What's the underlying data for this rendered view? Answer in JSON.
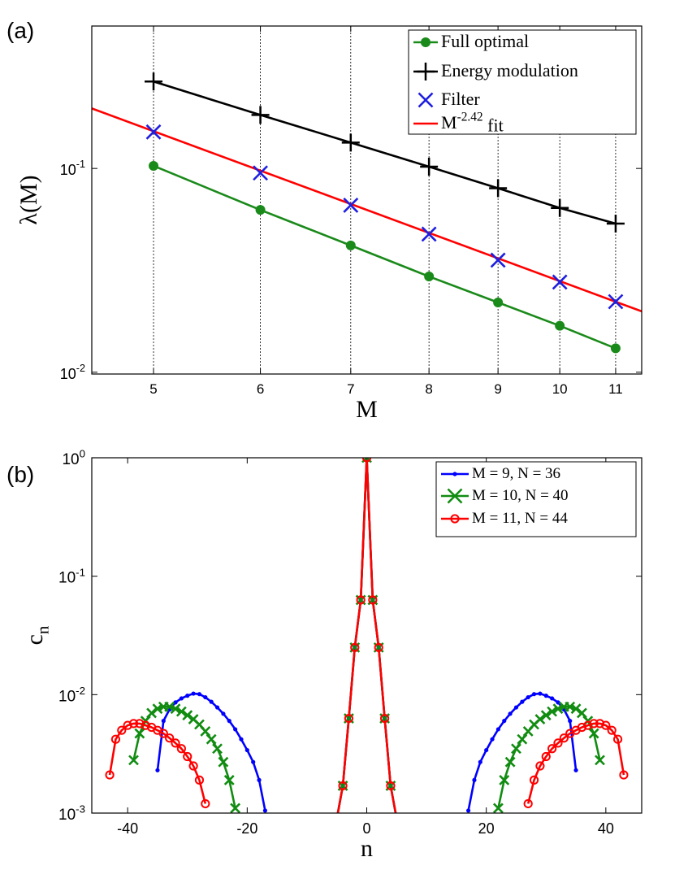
{
  "chart_data": [
    {
      "type": "line",
      "panel_label": "(a)",
      "x_label": "M",
      "y_label": "λ(M)",
      "xscale": "log",
      "yscale": "log",
      "xlim": [
        4.5,
        11.5
      ],
      "ylim": [
        0.0098,
        0.5
      ],
      "xticks": [
        5,
        6,
        7,
        8,
        9,
        10,
        11
      ],
      "yticks": [
        {
          "value": 0.01,
          "label": "10^{-2}"
        },
        {
          "value": 0.1,
          "label": "10^{-1}"
        }
      ],
      "grid": true,
      "legend": "upper right",
      "x": [
        5,
        6,
        7,
        8,
        9,
        10,
        11
      ],
      "series": [
        {
          "name": "Full optimal",
          "color": "#1a8a1a",
          "marker": "filled-circle",
          "line": true,
          "values": [
            0.103,
            0.0626,
            0.0419,
            0.0295,
            0.022,
            0.0169,
            0.0131
          ]
        },
        {
          "name": "Energy modulation",
          "color": "#000000",
          "marker": "plus",
          "line": true,
          "values": [
            0.267,
            0.183,
            0.134,
            0.102,
            0.08,
            0.064,
            0.0536
          ]
        },
        {
          "name": "Filter",
          "color": "#1f1fe0",
          "marker": "cross",
          "line": false,
          "values": [
            0.151,
            0.095,
            0.066,
            0.0476,
            0.0355,
            0.0277,
            0.0222
          ]
        },
        {
          "name": "M^{-2.42} fit",
          "color": "#ff0000",
          "marker": "none",
          "line": true,
          "x": [
            4.5,
            11.5
          ],
          "values": [
            0.197,
            0.0199
          ]
        }
      ]
    },
    {
      "type": "line",
      "panel_label": "(b)",
      "x_label": "n",
      "y_label": "c_{n}",
      "xscale": "linear",
      "yscale": "log",
      "xlim": [
        -46,
        46
      ],
      "ylim": [
        0.001,
        1
      ],
      "xticks": [
        -40,
        -20,
        0,
        20,
        40
      ],
      "yticks": [
        {
          "value": 0.001,
          "label": "10^{-3}"
        },
        {
          "value": 0.01,
          "label": "10^{-2}"
        },
        {
          "value": 0.1,
          "label": "10^{-1}"
        },
        {
          "value": 1,
          "label": "10^{0}"
        }
      ],
      "grid": false,
      "legend": "upper right",
      "series": [
        {
          "name": "M = 9, N = 36",
          "color": "#0000ff",
          "marker": "dot",
          "line": true,
          "x": [
            -35,
            -34,
            -33,
            -32,
            -31,
            -30,
            -29,
            -28,
            -27,
            -26,
            -25,
            -24,
            -23,
            -22,
            -21,
            -20,
            -19,
            -18,
            -17,
            -16,
            -5,
            -4,
            -3,
            -2,
            -1,
            0,
            1,
            2,
            3,
            4,
            5,
            16,
            17,
            18,
            19,
            20,
            21,
            22,
            23,
            24,
            25,
            26,
            27,
            28,
            29,
            30,
            31,
            32,
            33,
            34,
            35
          ],
          "values": [
            0.0023,
            0.006,
            0.0075,
            0.0086,
            0.0093,
            0.0098,
            0.0102,
            0.0101,
            0.0095,
            0.0087,
            0.0078,
            0.0069,
            0.006,
            0.0051,
            0.0042,
            0.0034,
            0.0027,
            0.0019,
            0.00105,
            null,
            0.0009,
            0.0017,
            0.0063,
            0.025,
            0.063,
            1,
            0.063,
            0.025,
            0.0063,
            0.0017,
            0.0009,
            null,
            0.00105,
            0.0019,
            0.0027,
            0.0034,
            0.0042,
            0.0051,
            0.006,
            0.0069,
            0.0078,
            0.0087,
            0.0095,
            0.0101,
            0.0102,
            0.0098,
            0.0093,
            0.0086,
            0.0075,
            0.006,
            0.0023
          ]
        },
        {
          "name": "M = 10, N = 40",
          "color": "#118c11",
          "marker": "cross",
          "line": true,
          "x": [
            -39,
            -38,
            -37,
            -36,
            -35,
            -34,
            -33,
            -32,
            -31,
            -30,
            -29,
            -28,
            -27,
            -26,
            -25,
            -24,
            -23,
            -22,
            -21,
            -5,
            -4,
            -3,
            -2,
            -1,
            0,
            1,
            2,
            3,
            4,
            5,
            21,
            22,
            23,
            24,
            25,
            26,
            27,
            28,
            29,
            30,
            31,
            32,
            33,
            34,
            35,
            36,
            37,
            38,
            39
          ],
          "values": [
            0.0028,
            0.0047,
            0.006,
            0.007,
            0.0076,
            0.0079,
            0.0079,
            0.0076,
            0.0072,
            0.0067,
            0.0062,
            0.0056,
            0.0049,
            0.0042,
            0.0035,
            0.0027,
            0.0019,
            0.0011,
            null,
            0.0009,
            0.0017,
            0.0063,
            0.025,
            0.063,
            1,
            0.063,
            0.025,
            0.0063,
            0.0017,
            0.0009,
            null,
            0.0011,
            0.0019,
            0.0027,
            0.0035,
            0.0042,
            0.0049,
            0.0056,
            0.0062,
            0.0067,
            0.0072,
            0.0076,
            0.0079,
            0.0079,
            0.0076,
            0.007,
            0.006,
            0.0047,
            0.0028
          ]
        },
        {
          "name": "M = 11, N = 44",
          "color": "#ff0000",
          "marker": "open-circle",
          "line": true,
          "x": [
            -43,
            -42,
            -41,
            -40,
            -39,
            -38,
            -37,
            -36,
            -35,
            -34,
            -33,
            -32,
            -31,
            -30,
            -29,
            -28,
            -27,
            -26,
            -5,
            -4,
            -3,
            -2,
            -1,
            0,
            1,
            2,
            3,
            4,
            5,
            26,
            27,
            28,
            29,
            30,
            31,
            32,
            33,
            34,
            35,
            36,
            37,
            38,
            39,
            40,
            41,
            42,
            43
          ],
          "values": [
            0.0021,
            0.0042,
            0.005,
            0.0055,
            0.0057,
            0.0057,
            0.0055,
            0.0053,
            0.005,
            0.0047,
            0.0043,
            0.0039,
            0.0035,
            0.003,
            0.0025,
            0.0019,
            0.0012,
            null,
            0.0009,
            0.0017,
            0.0063,
            0.025,
            0.063,
            1,
            0.063,
            0.025,
            0.0063,
            0.0017,
            0.0009,
            null,
            0.0012,
            0.0019,
            0.0025,
            0.003,
            0.0035,
            0.0039,
            0.0043,
            0.0047,
            0.005,
            0.0053,
            0.0055,
            0.0057,
            0.0057,
            0.0055,
            0.005,
            0.0042,
            0.0021
          ]
        }
      ]
    }
  ]
}
